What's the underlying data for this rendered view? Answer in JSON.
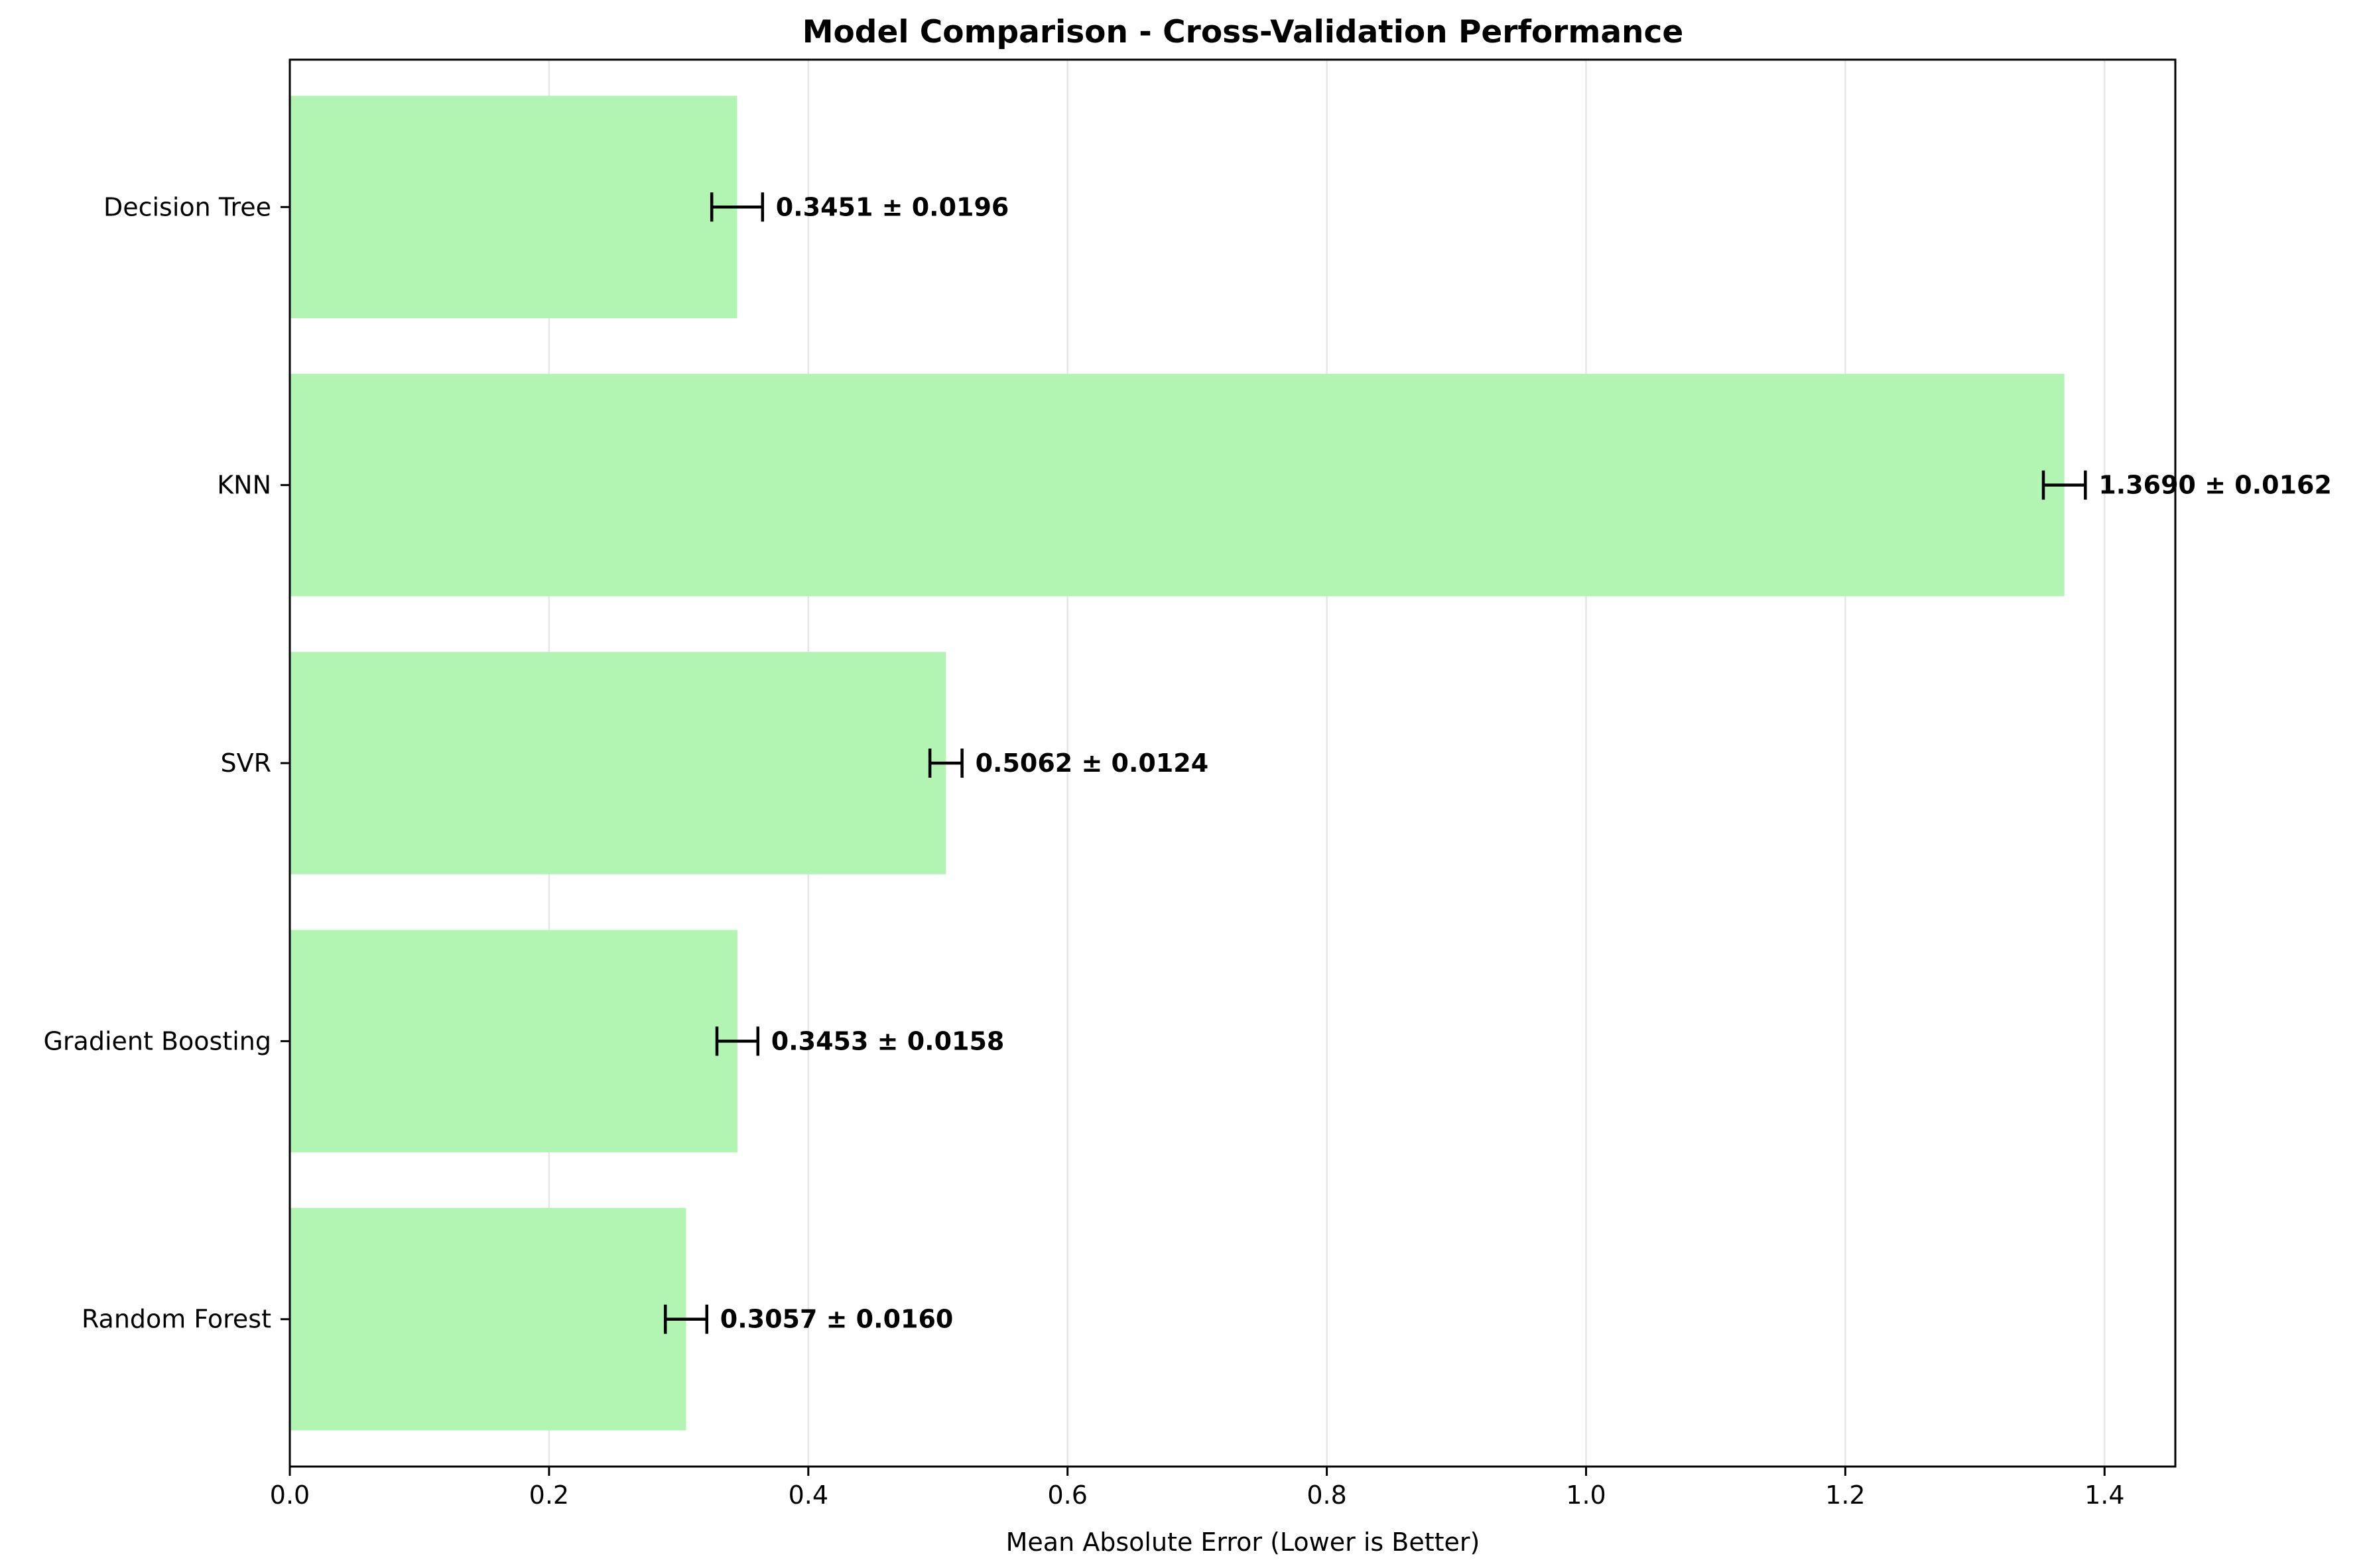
{
  "chart_data": {
    "type": "bar",
    "orientation": "horizontal",
    "title": "Model Comparison - Cross-Validation Performance",
    "xlabel": "Mean Absolute Error (Lower is Better)",
    "ylabel": "",
    "xlim": [
      0,
      1.4546
    ],
    "x_ticks": [
      0.0,
      0.2,
      0.4,
      0.6,
      0.8,
      1.0,
      1.2,
      1.4
    ],
    "x_tick_labels": [
      "0.0",
      "0.2",
      "0.4",
      "0.6",
      "0.8",
      "1.0",
      "1.2",
      "1.4"
    ],
    "grid": "x-axis on",
    "bar_color": "#b2f4b2",
    "categories": [
      "Random Forest",
      "Gradient Boosting",
      "SVR",
      "KNN",
      "Decision Tree"
    ],
    "values": [
      0.3057,
      0.3453,
      0.5062,
      1.369,
      0.3451
    ],
    "errors": [
      0.016,
      0.0158,
      0.0124,
      0.0162,
      0.0196
    ],
    "value_labels": [
      "0.3057 ± 0.0160",
      "0.3453 ± 0.0158",
      "0.5062 ± 0.0124",
      "1.3690 ± 0.0162",
      "0.3451 ± 0.0196"
    ]
  }
}
